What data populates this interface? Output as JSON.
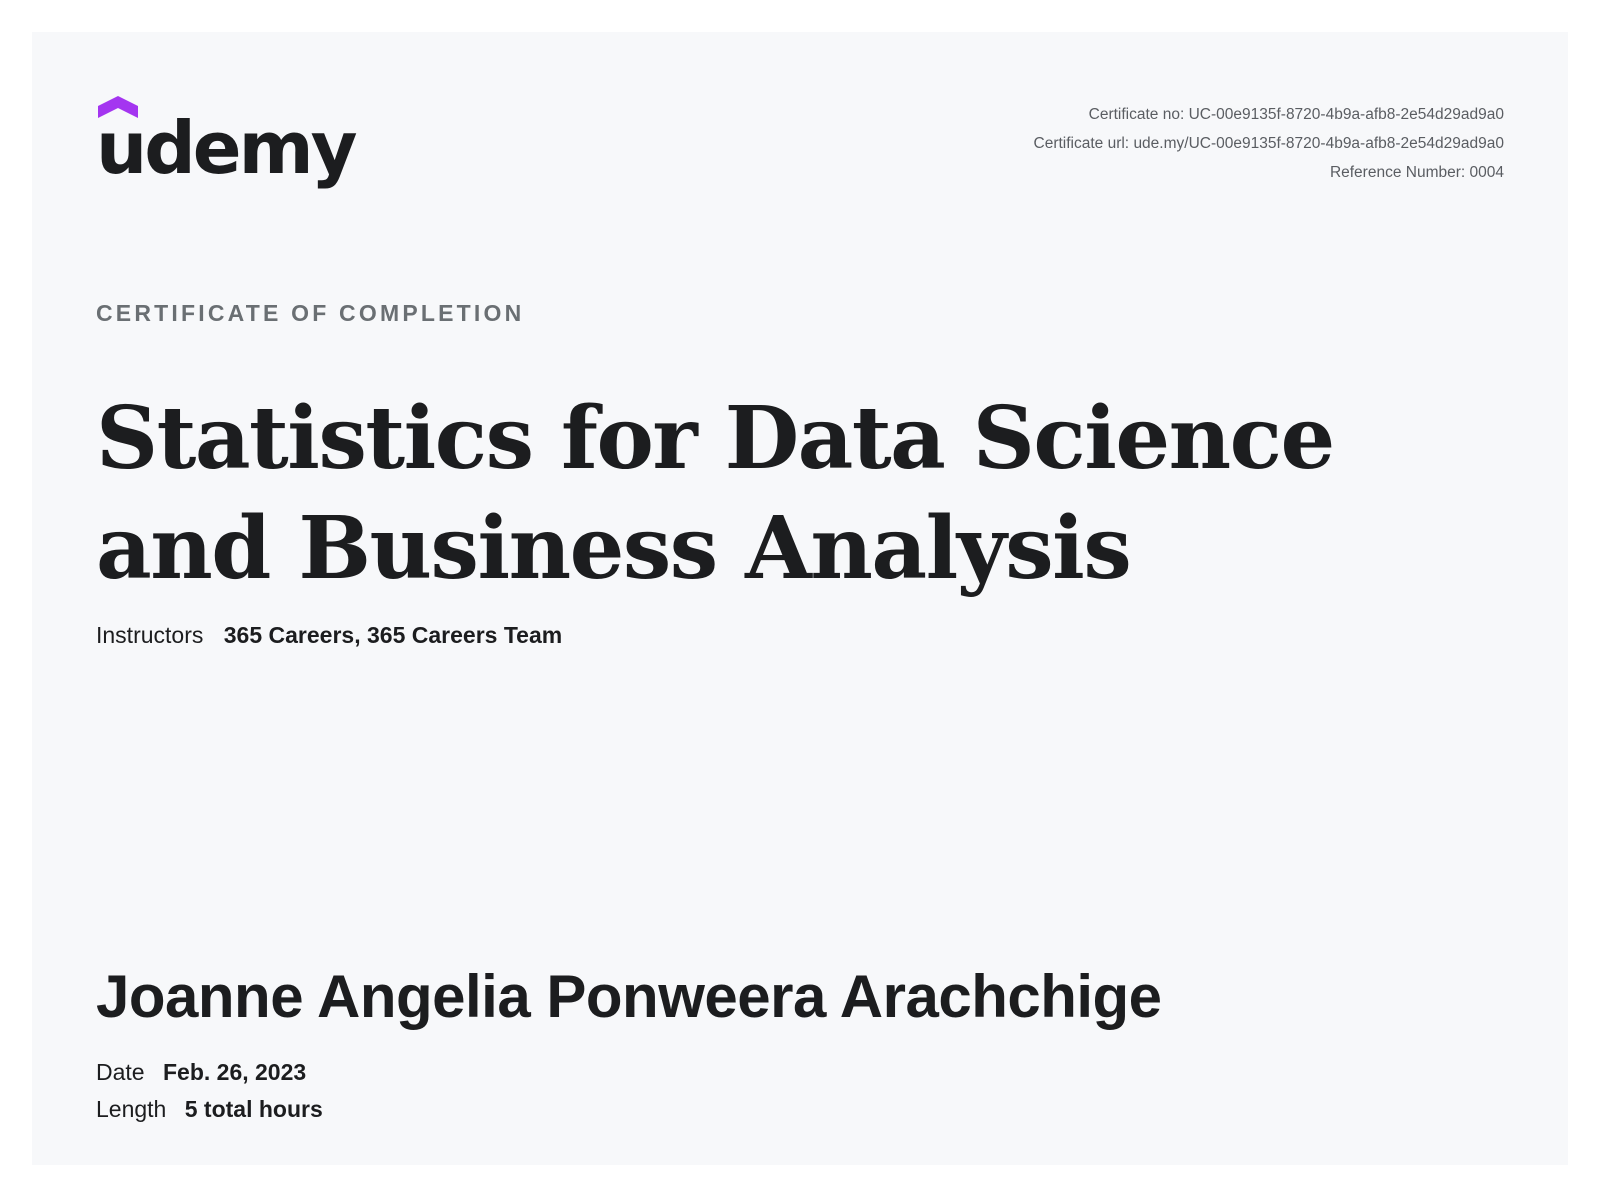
{
  "brand": {
    "logo_text": "udemy",
    "logo_icon": "graduation-cap-icon",
    "accent_color": "#a435f0"
  },
  "certificate_meta": {
    "number_label": "Certificate no:",
    "number_value": "UC-00e9135f-8720-4b9a-afb8-2e54d29ad9a0",
    "url_label": "Certificate url:",
    "url_value": "ude.my/UC-00e9135f-8720-4b9a-afb8-2e54d29ad9a0",
    "reference_label": "Reference Number:",
    "reference_value": "0004"
  },
  "heading": "CERTIFICATE OF COMPLETION",
  "course_title": "Statistics for Data Science and Business Analysis",
  "instructors": {
    "label": "Instructors",
    "names": [
      "365 Careers,",
      "365 Careers Team"
    ]
  },
  "recipient_name": "Joanne Angelia Ponweera Arachchige",
  "date": {
    "label": "Date",
    "value": "Feb. 26, 2023"
  },
  "length": {
    "label": "Length",
    "value": "5 total hours"
  }
}
